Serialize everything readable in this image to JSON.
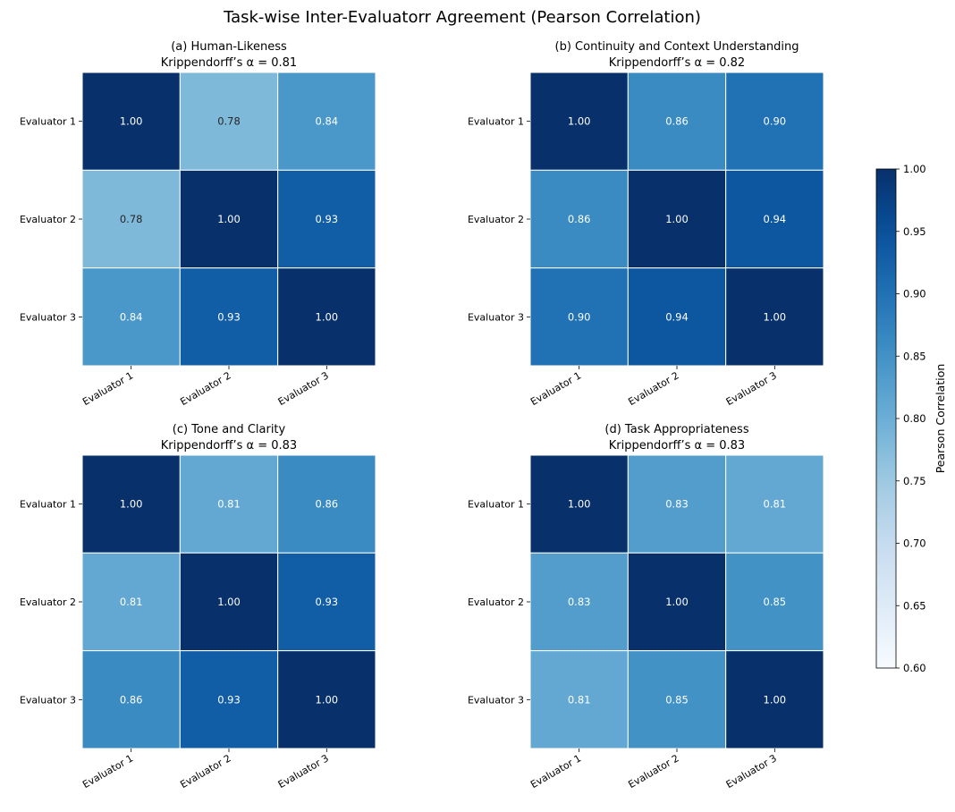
{
  "chart_data": {
    "type": "heatmap",
    "title": "Task-wise Inter-Evaluatorr Agreement (Pearson Correlation)",
    "colormap": "Blues",
    "vmin": 0.6,
    "vmax": 1.0,
    "colorbar": {
      "label": "Pearson Correlation",
      "ticks": [
        "0.60",
        "0.65",
        "0.70",
        "0.75",
        "0.80",
        "0.85",
        "0.90",
        "0.95",
        "1.00"
      ],
      "placement": "right"
    },
    "labels": [
      "Evaluator 1",
      "Evaluator 2",
      "Evaluator 3"
    ],
    "panels": [
      {
        "title": "(a) Human-Likeness",
        "subtitle": "Krippendorff’s α = 0.81",
        "matrix": [
          [
            1.0,
            0.78,
            0.84
          ],
          [
            0.78,
            1.0,
            0.93
          ],
          [
            0.84,
            0.93,
            1.0
          ]
        ]
      },
      {
        "title": "(b) Continuity and Context Understanding",
        "subtitle": "Krippendorff’s α = 0.82",
        "matrix": [
          [
            1.0,
            0.86,
            0.9
          ],
          [
            0.86,
            1.0,
            0.94
          ],
          [
            0.9,
            0.94,
            1.0
          ]
        ]
      },
      {
        "title": "(c) Tone and Clarity",
        "subtitle": "Krippendorff’s α = 0.83",
        "matrix": [
          [
            1.0,
            0.81,
            0.86
          ],
          [
            0.81,
            1.0,
            0.93
          ],
          [
            0.86,
            0.93,
            1.0
          ]
        ]
      },
      {
        "title": "(d) Task Appropriateness",
        "subtitle": "Krippendorff’s α = 0.83",
        "matrix": [
          [
            1.0,
            0.83,
            0.81
          ],
          [
            0.83,
            1.0,
            0.85
          ],
          [
            0.81,
            0.85,
            1.0
          ]
        ]
      }
    ]
  }
}
